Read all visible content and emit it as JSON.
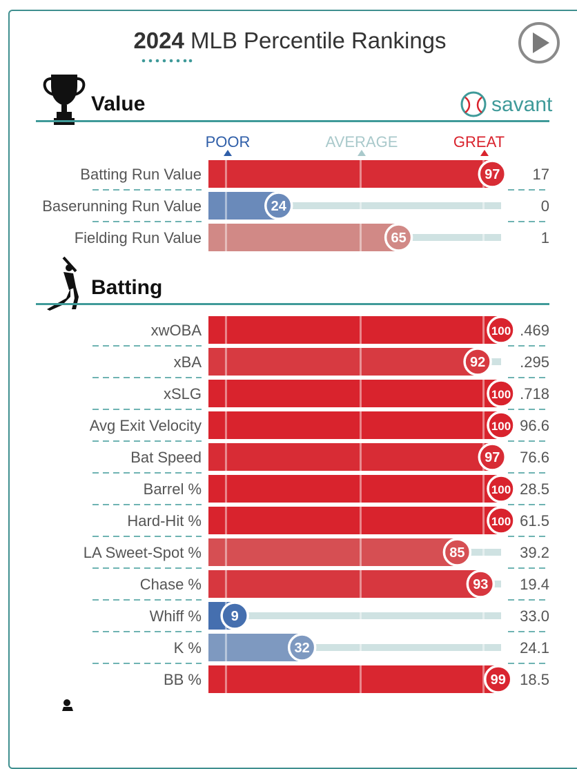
{
  "header": {
    "title_year": "2024",
    "title_rest": " MLB Percentile Rankings",
    "play_button_icon": "play-circle-icon"
  },
  "brand": {
    "name": "savant",
    "icon": "baseball-icon",
    "accent": "#3f9a99"
  },
  "scale": {
    "poor": "POOR",
    "average": "AVERAGE",
    "great": "GREAT",
    "poor_color": "#2f5ea8",
    "average_color": "#a9c9cb",
    "great_color": "#d9232d"
  },
  "chart_data": {
    "type": "bar",
    "title": "2024 MLB Percentile Rankings",
    "xlim": [
      0,
      100
    ],
    "sections": [
      {
        "name": "Value",
        "icon": "trophy-icon",
        "metrics": [
          {
            "label": "Batting Run Value",
            "percentile": 97,
            "value": "17"
          },
          {
            "label": "Baserunning Run Value",
            "percentile": 24,
            "value": "0"
          },
          {
            "label": "Fielding Run Value",
            "percentile": 65,
            "value": "1"
          }
        ]
      },
      {
        "name": "Batting",
        "icon": "batter-icon",
        "metrics": [
          {
            "label": "xwOBA",
            "percentile": 100,
            "value": ".469"
          },
          {
            "label": "xBA",
            "percentile": 92,
            "value": ".295"
          },
          {
            "label": "xSLG",
            "percentile": 100,
            "value": ".718"
          },
          {
            "label": "Avg Exit Velocity",
            "percentile": 100,
            "value": "96.6"
          },
          {
            "label": "Bat Speed",
            "percentile": 97,
            "value": "76.6"
          },
          {
            "label": "Barrel %",
            "percentile": 100,
            "value": "28.5"
          },
          {
            "label": "Hard-Hit %",
            "percentile": 100,
            "value": "61.5"
          },
          {
            "label": "LA Sweet-Spot %",
            "percentile": 85,
            "value": "39.2"
          },
          {
            "label": "Chase %",
            "percentile": 93,
            "value": "19.4"
          },
          {
            "label": "Whiff %",
            "percentile": 9,
            "value": "33.0"
          },
          {
            "label": "K %",
            "percentile": 32,
            "value": "24.1"
          },
          {
            "label": "BB %",
            "percentile": 99,
            "value": "18.5"
          }
        ]
      }
    ]
  }
}
